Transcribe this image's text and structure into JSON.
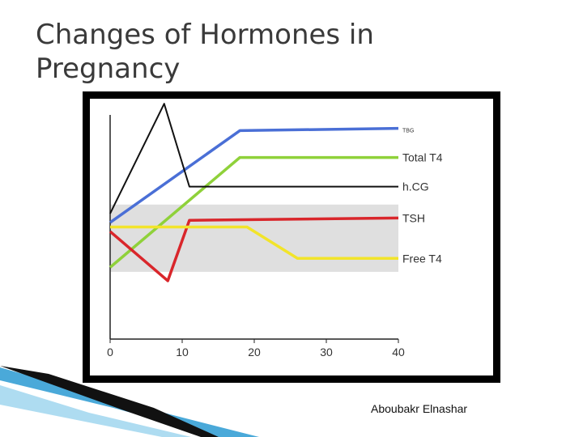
{
  "slide": {
    "title_line1": "Changes of Hormones in",
    "title_line2": "Pregnancy",
    "credit": "Aboubakr Elnashar"
  },
  "chart_data": {
    "type": "line",
    "title": "",
    "xlabel": "",
    "ylabel": "",
    "xlim": [
      0,
      40
    ],
    "ylim": [
      0,
      100
    ],
    "x_ticks": [
      0,
      10,
      20,
      30,
      40
    ],
    "normal_range_band": {
      "y_from": 30,
      "y_to": 60,
      "color": "#d9d9d9"
    },
    "series": [
      {
        "name": "TBG",
        "color": "#4a6fd6",
        "points": [
          [
            0,
            52
          ],
          [
            18,
            93
          ],
          [
            40,
            94
          ]
        ]
      },
      {
        "name": "Total T4",
        "color": "#8fd13a",
        "points": [
          [
            0,
            32
          ],
          [
            18,
            81
          ],
          [
            40,
            81
          ]
        ]
      },
      {
        "name": "h.CG",
        "color": "#111111",
        "points": [
          [
            0,
            56
          ],
          [
            7.5,
            105
          ],
          [
            11,
            68
          ],
          [
            40,
            68
          ]
        ]
      },
      {
        "name": "TSH",
        "color": "#d9262b",
        "points": [
          [
            0,
            48
          ],
          [
            8,
            26
          ],
          [
            11,
            53
          ],
          [
            40,
            54
          ]
        ]
      },
      {
        "name": "Free T4",
        "color": "#f2e42a",
        "points": [
          [
            0,
            50
          ],
          [
            19,
            50
          ],
          [
            26,
            36
          ],
          [
            40,
            36
          ]
        ]
      }
    ]
  }
}
